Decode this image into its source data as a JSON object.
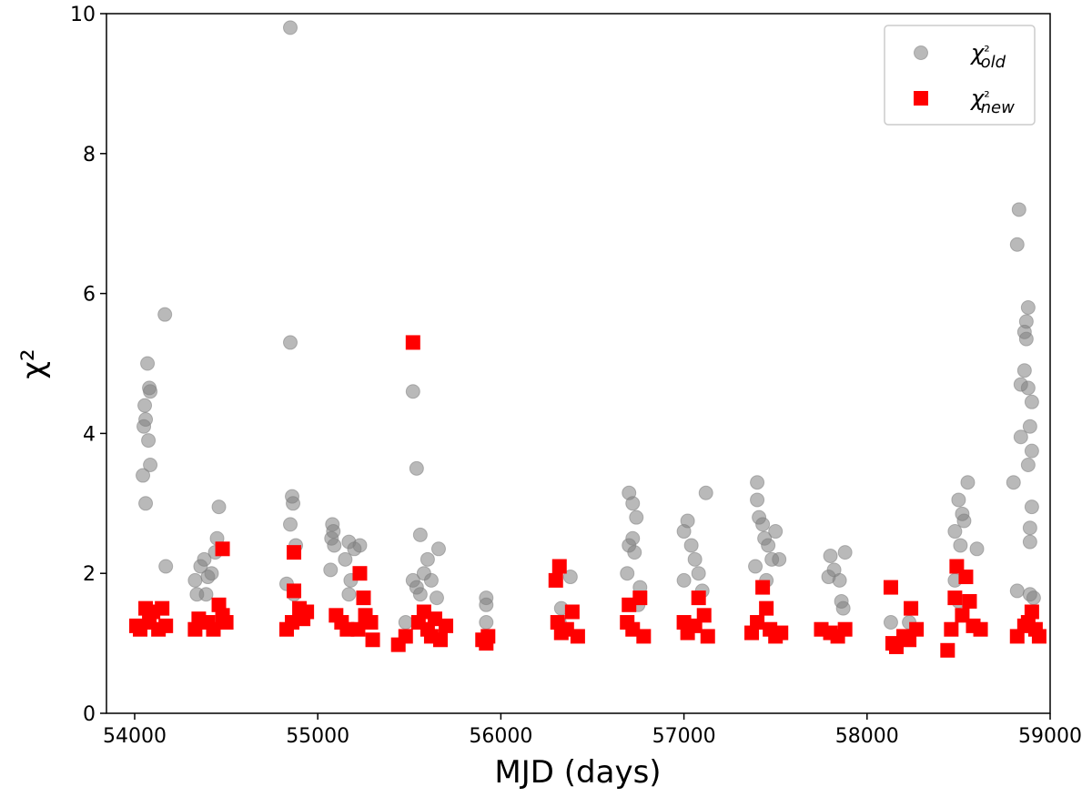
{
  "chart_data": {
    "type": "scatter",
    "xlabel": "MJD (days)",
    "ylabel": "χ²",
    "xlim": [
      53846,
      59000
    ],
    "ylim": [
      0,
      10
    ],
    "xticks": [
      54000,
      55000,
      56000,
      57000,
      58000,
      59000
    ],
    "yticks": [
      0,
      2,
      4,
      6,
      8,
      10
    ],
    "legend": "upper right",
    "series": [
      {
        "name": "χ²old",
        "color": "#808080",
        "marker": "circle",
        "x": [
          54050,
          54060,
          54055,
          54070,
          54080,
          54085,
          54075,
          54085,
          54045,
          54060,
          54165,
          54170,
          54330,
          54340,
          54360,
          54380,
          54400,
          54420,
          54440,
          54460,
          54450,
          54390,
          54850,
          54850,
          54860,
          54865,
          54850,
          54830,
          54880,
          54870,
          55080,
          55085,
          55075,
          55090,
          55070,
          55150,
          55170,
          55200,
          55230,
          55180,
          55170,
          55520,
          55540,
          55560,
          55520,
          55540,
          55560,
          55580,
          55600,
          55620,
          55660,
          55650,
          55480,
          55920,
          55920,
          55920,
          56330,
          56380,
          56320,
          56700,
          56720,
          56740,
          56720,
          56700,
          56730,
          56690,
          56760,
          56750,
          57000,
          57020,
          57040,
          57060,
          57080,
          57100,
          57120,
          57000,
          57400,
          57400,
          57410,
          57430,
          57440,
          57460,
          57480,
          57500,
          57520,
          57390,
          57450,
          57800,
          57820,
          57850,
          57880,
          57790,
          57860,
          57870,
          58130,
          58230,
          58480,
          58500,
          58520,
          58530,
          58550,
          58510,
          58480,
          58600,
          58500,
          58800,
          58830,
          58820,
          58880,
          58870,
          58860,
          58870,
          58860,
          58840,
          58880,
          58900,
          58840,
          58890,
          58880,
          58900,
          58900,
          58890,
          58890,
          58890,
          58910,
          58820
        ],
        "values": [
          4.1,
          4.2,
          4.4,
          5.0,
          4.65,
          4.6,
          3.9,
          3.55,
          3.4,
          3.0,
          5.7,
          2.1,
          1.9,
          1.7,
          2.1,
          2.2,
          1.95,
          2.0,
          2.3,
          2.95,
          2.5,
          1.7,
          9.8,
          5.3,
          3.1,
          3.0,
          2.7,
          1.85,
          2.4,
          1.7,
          2.7,
          2.6,
          2.5,
          2.4,
          2.05,
          2.2,
          2.45,
          2.35,
          2.4,
          1.9,
          1.7,
          4.6,
          3.5,
          2.55,
          1.9,
          1.8,
          1.7,
          2.0,
          2.2,
          1.9,
          2.35,
          1.65,
          1.3,
          1.65,
          1.55,
          1.3,
          1.5,
          1.95,
          1.3,
          3.15,
          3.0,
          2.8,
          2.5,
          2.4,
          2.3,
          2.0,
          1.8,
          1.55,
          2.6,
          2.75,
          2.4,
          2.2,
          2.0,
          1.75,
          3.15,
          1.9,
          3.3,
          3.05,
          2.8,
          2.7,
          2.5,
          2.4,
          2.2,
          2.6,
          2.2,
          2.1,
          1.9,
          2.25,
          2.05,
          1.9,
          2.3,
          1.95,
          1.6,
          1.5,
          1.3,
          1.3,
          2.6,
          3.05,
          2.85,
          2.75,
          3.3,
          2.4,
          1.9,
          2.35,
          1.6,
          3.3,
          7.2,
          6.7,
          5.8,
          5.6,
          5.45,
          5.35,
          4.9,
          4.7,
          4.65,
          4.45,
          3.95,
          4.1,
          3.55,
          3.75,
          2.95,
          2.65,
          2.45,
          1.7,
          1.65,
          1.75
        ]
      },
      {
        "name": "χ²new",
        "color": "#ff0000",
        "marker": "square",
        "x": [
          54010,
          54030,
          54060,
          54080,
          54100,
          54130,
          54150,
          54170,
          54330,
          54350,
          54400,
          54430,
          54460,
          54480,
          54480,
          54500,
          54830,
          54860,
          54870,
          54870,
          54900,
          54920,
          54940,
          55100,
          55130,
          55160,
          55230,
          55250,
          55260,
          55290,
          55300,
          55220,
          55440,
          55480,
          55520,
          55550,
          55580,
          55600,
          55620,
          55640,
          55670,
          55700,
          55900,
          55920,
          55930,
          56300,
          56320,
          56310,
          56330,
          56360,
          56390,
          56420,
          56690,
          56700,
          56720,
          56760,
          56780,
          57000,
          57020,
          57060,
          57080,
          57110,
          57130,
          57370,
          57400,
          57430,
          57450,
          57470,
          57500,
          57530,
          57750,
          57800,
          57840,
          57880,
          58130,
          58140,
          58160,
          58200,
          58240,
          58270,
          58230,
          58440,
          58460,
          58480,
          58490,
          58520,
          58540,
          58560,
          58580,
          58620,
          58820,
          58860,
          58900,
          58920,
          58940,
          58880
        ],
        "values": [
          1.25,
          1.2,
          1.5,
          1.3,
          1.45,
          1.2,
          1.5,
          1.25,
          1.2,
          1.35,
          1.3,
          1.2,
          1.55,
          1.4,
          2.35,
          1.3,
          1.2,
          1.3,
          2.3,
          1.75,
          1.5,
          1.35,
          1.45,
          1.4,
          1.3,
          1.2,
          2.0,
          1.65,
          1.4,
          1.3,
          1.05,
          1.2,
          0.98,
          1.1,
          5.3,
          1.3,
          1.45,
          1.2,
          1.1,
          1.35,
          1.05,
          1.25,
          1.05,
          1.0,
          1.1,
          1.9,
          2.1,
          1.3,
          1.15,
          1.2,
          1.45,
          1.1,
          1.3,
          1.55,
          1.2,
          1.65,
          1.1,
          1.3,
          1.15,
          1.25,
          1.65,
          1.4,
          1.1,
          1.15,
          1.3,
          1.8,
          1.5,
          1.2,
          1.1,
          1.15,
          1.2,
          1.15,
          1.1,
          1.2,
          1.8,
          1.0,
          0.95,
          1.1,
          1.5,
          1.2,
          1.05,
          0.9,
          1.2,
          1.65,
          2.1,
          1.4,
          1.95,
          1.6,
          1.25,
          1.2,
          1.1,
          1.25,
          1.45,
          1.2,
          1.1,
          1.3
        ]
      }
    ]
  }
}
